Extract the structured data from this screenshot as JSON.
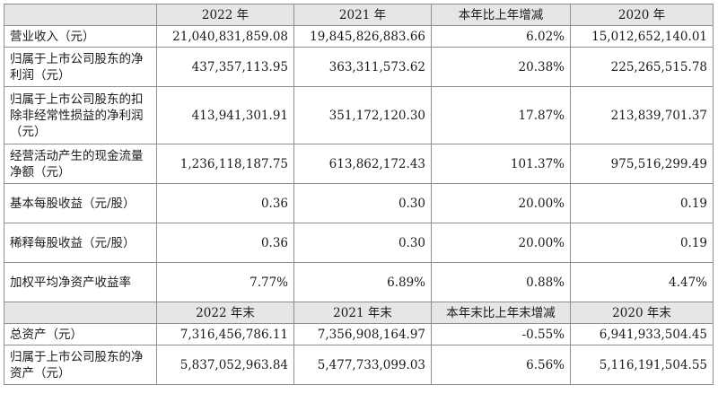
{
  "header1": [
    "",
    "2022 年",
    "2021 年",
    "本年比上年增减",
    "2020 年"
  ],
  "rows1": [
    {
      "label": "营业收入（元）",
      "values": [
        "21,040,831,859.08",
        "19,845,826,883.66",
        "6.02%",
        "15,012,652,140.01"
      ]
    },
    {
      "label": "归属于上市公司股东的净利润（元）",
      "values": [
        "437,357,113.95",
        "363,311,573.62",
        "20.38%",
        "225,265,515.78"
      ]
    },
    {
      "label": "归属于上市公司股东的扣除非经常性损益的净利润（元）",
      "values": [
        "413,941,301.91",
        "351,172,120.30",
        "17.87%",
        "213,839,701.37"
      ]
    },
    {
      "label": "经营活动产生的现金流量净额（元）",
      "values": [
        "1,236,118,187.75",
        "613,862,172.43",
        "101.37%",
        "975,516,299.49"
      ]
    },
    {
      "label": "基本每股收益（元/股）",
      "values": [
        "0.36",
        "0.30",
        "20.00%",
        "0.19"
      ]
    },
    {
      "label": "稀释每股收益（元/股）",
      "values": [
        "0.36",
        "0.30",
        "20.00%",
        "0.19"
      ]
    },
    {
      "label": "加权平均净资产收益率",
      "values": [
        "7.77%",
        "6.89%",
        "0.88%",
        "4.47%"
      ]
    }
  ],
  "header2": [
    "",
    "2022 年末",
    "2021 年末",
    "本年末比上年末增减",
    "2020 年末"
  ],
  "rows2": [
    {
      "label": "总资产（元）",
      "values": [
        "7,316,456,786.11",
        "7,356,908,164.97",
        "-0.55%",
        "6,941,933,504.45"
      ]
    },
    {
      "label": "归属于上市公司股东的净资产（元）",
      "values": [
        "5,837,052,963.84",
        "5,477,733,099.03",
        "6.56%",
        "5,116,191,504.55"
      ]
    }
  ]
}
